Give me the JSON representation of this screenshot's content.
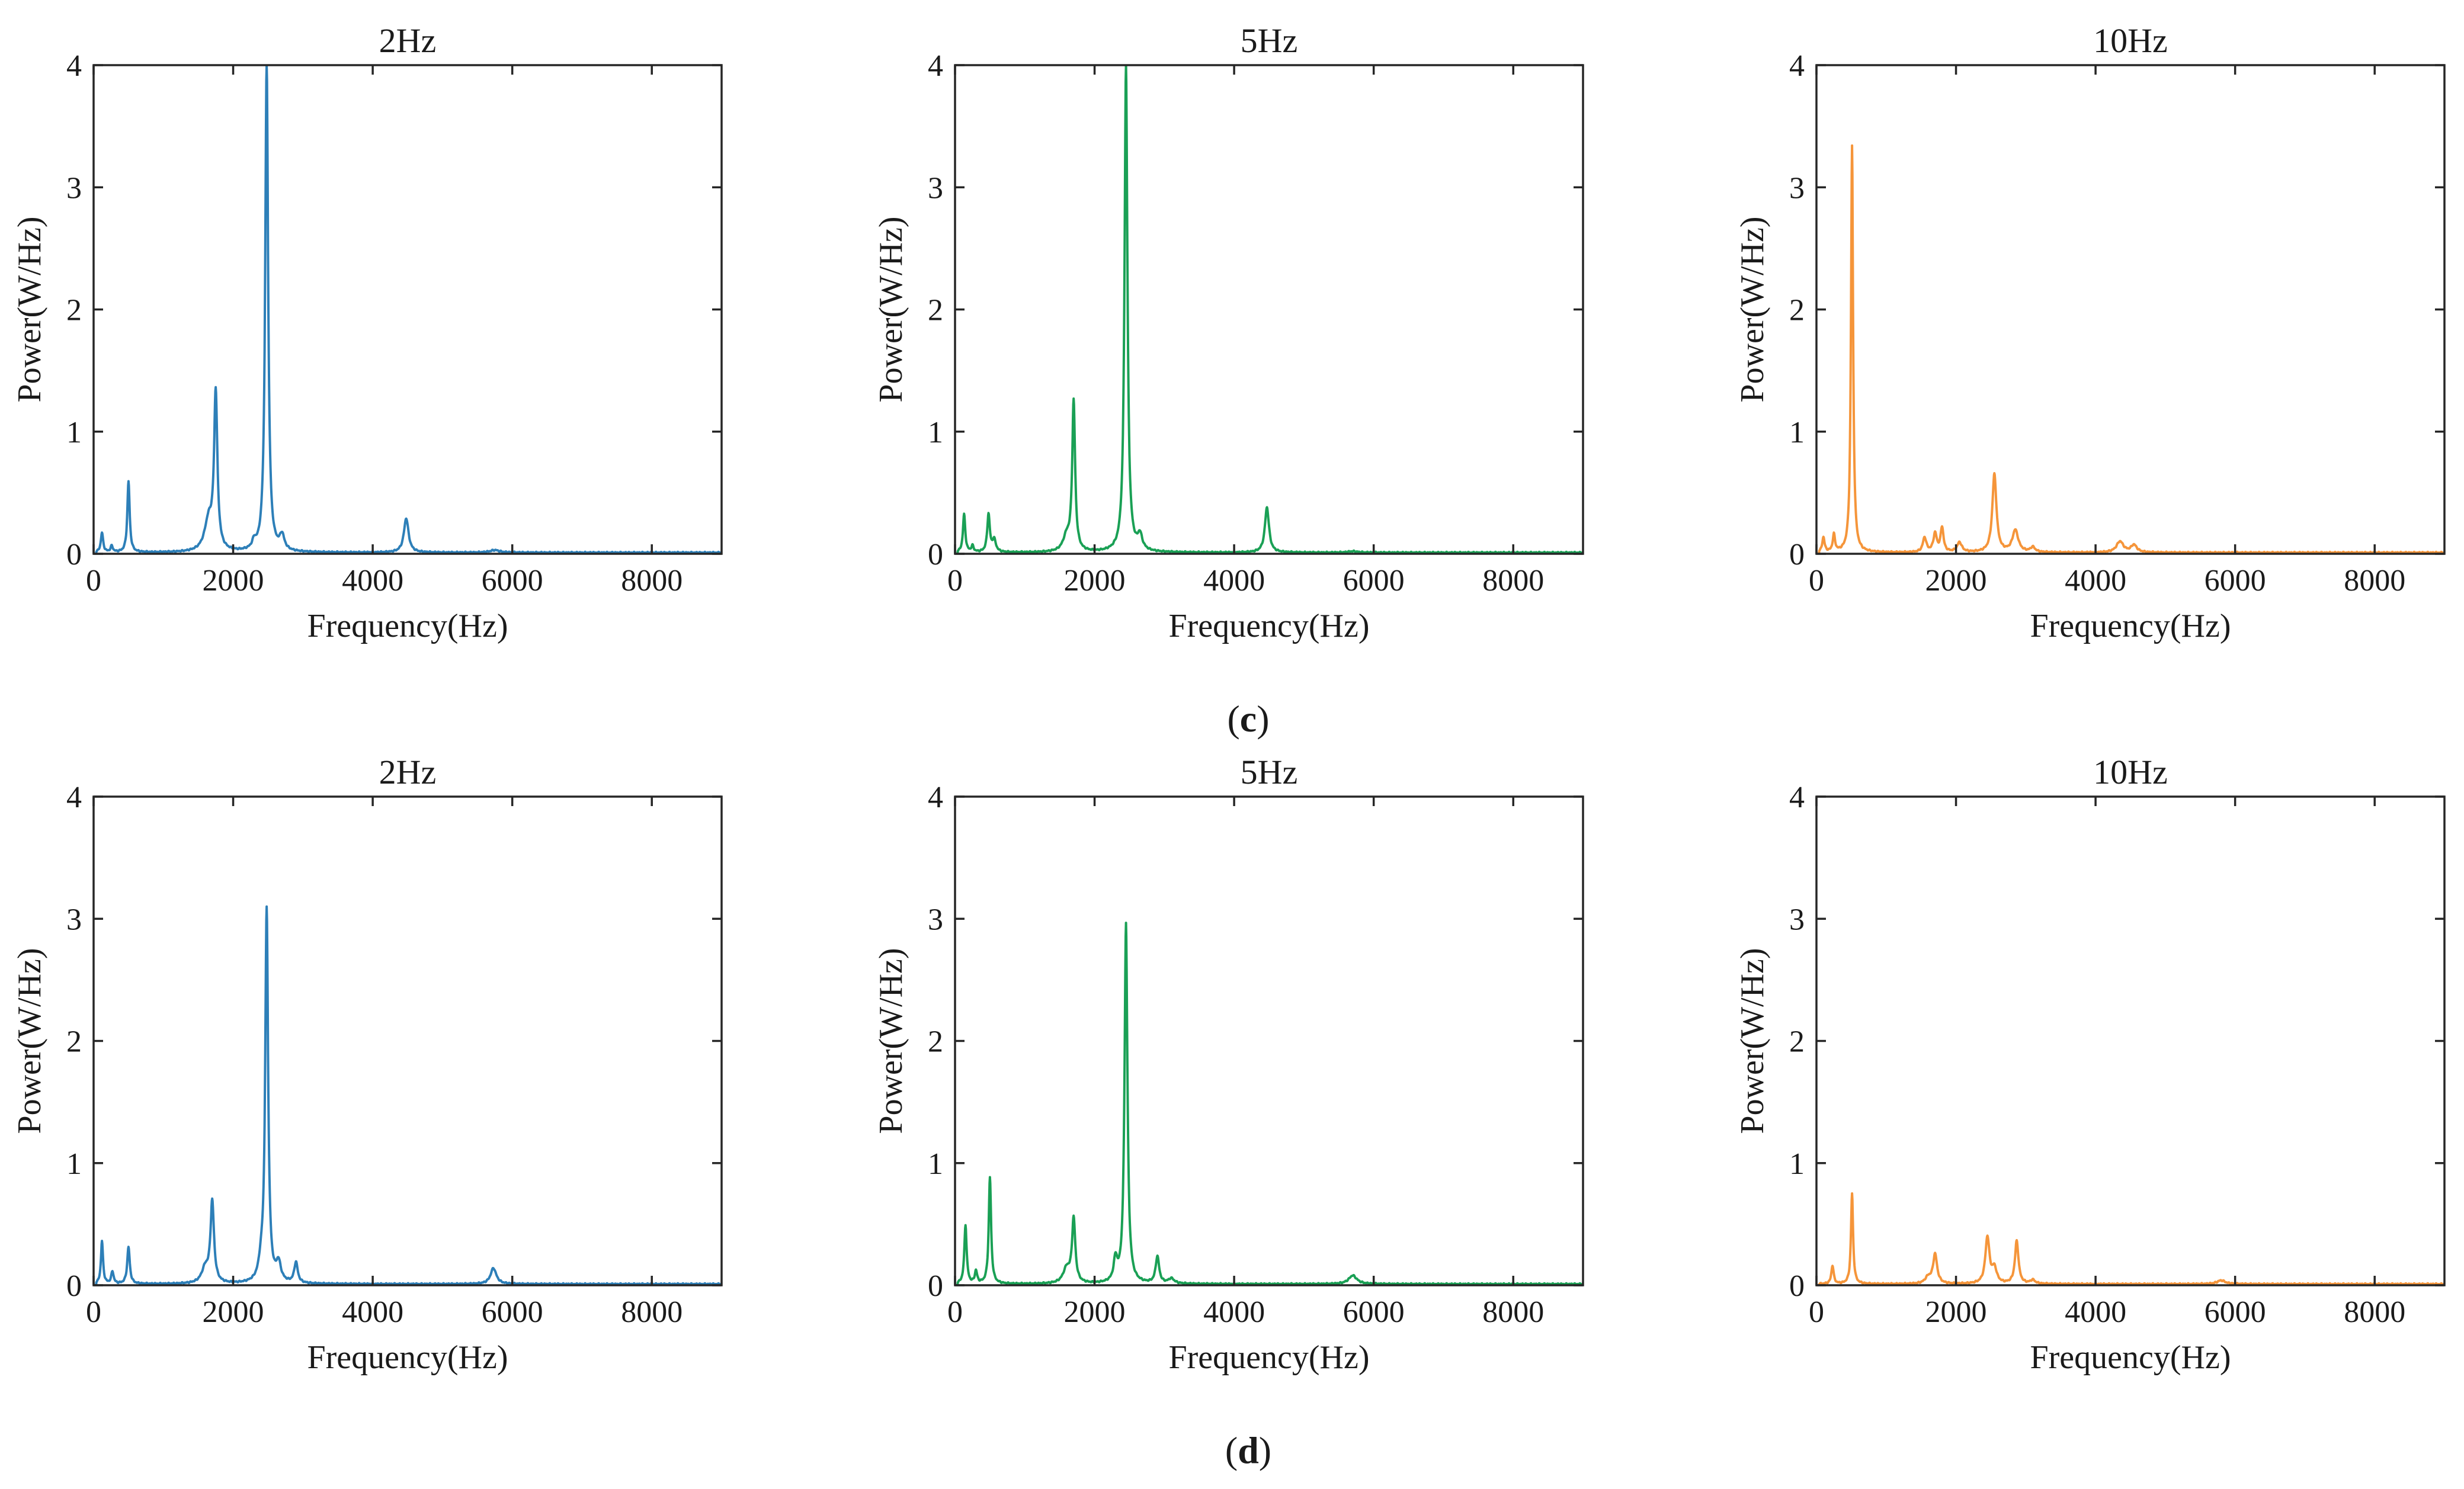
{
  "figure": {
    "panel_labels": [
      {
        "open": "(",
        "letter": "c",
        "close": ")"
      },
      {
        "open": "(",
        "letter": "d",
        "close": ")"
      }
    ]
  },
  "chart_data": [
    {
      "type": "line",
      "title": "2Hz",
      "xlabel": "Frequency(Hz)",
      "ylabel": "Power(W/Hz)",
      "xlim": [
        0,
        9000
      ],
      "ylim": [
        0,
        4
      ],
      "xticks": [
        0,
        2000,
        4000,
        6000,
        8000
      ],
      "yticks": [
        0,
        1,
        2,
        3,
        4
      ],
      "color": "#2d7fb8",
      "series": [
        {
          "name": "2Hz",
          "baseline": 0.01,
          "peaks": [
            {
              "f": 120,
              "p": 0.16,
              "w": 20
            },
            {
              "f": 260,
              "p": 0.05,
              "w": 20
            },
            {
              "f": 500,
              "p": 0.58,
              "w": 20
            },
            {
              "f": 1750,
              "p": 1.27,
              "w": 28
            },
            {
              "f": 1650,
              "p": 0.25,
              "w": 70
            },
            {
              "f": 2300,
              "p": 0.06,
              "w": 30
            },
            {
              "f": 2480,
              "p": 4.0,
              "w": 25
            },
            {
              "f": 2700,
              "p": 0.12,
              "w": 40
            },
            {
              "f": 4480,
              "p": 0.28,
              "w": 40
            },
            {
              "f": 5750,
              "p": 0.02,
              "w": 80
            }
          ]
        }
      ]
    },
    {
      "type": "line",
      "title": "5Hz",
      "xlabel": "Frequency(Hz)",
      "ylabel": "Power(W/Hz)",
      "xlim": [
        0,
        9000
      ],
      "ylim": [
        0,
        4
      ],
      "xticks": [
        0,
        2000,
        4000,
        6000,
        8000
      ],
      "yticks": [
        0,
        1,
        2,
        3,
        4
      ],
      "color": "#1aa055",
      "series": [
        {
          "name": "5Hz",
          "baseline": 0.01,
          "peaks": [
            {
              "f": 130,
              "p": 0.31,
              "w": 20
            },
            {
              "f": 250,
              "p": 0.05,
              "w": 20
            },
            {
              "f": 480,
              "p": 0.31,
              "w": 22
            },
            {
              "f": 560,
              "p": 0.1,
              "w": 30
            },
            {
              "f": 1700,
              "p": 1.22,
              "w": 25
            },
            {
              "f": 1600,
              "p": 0.12,
              "w": 60
            },
            {
              "f": 2450,
              "p": 4.0,
              "w": 25
            },
            {
              "f": 2650,
              "p": 0.12,
              "w": 40
            },
            {
              "f": 4470,
              "p": 0.37,
              "w": 35
            },
            {
              "f": 5700,
              "p": 0.01,
              "w": 80
            }
          ]
        }
      ]
    },
    {
      "type": "line",
      "title": "10Hz",
      "xlabel": "Frequency(Hz)",
      "ylabel": "Power(W/Hz)",
      "xlim": [
        0,
        9000
      ],
      "ylim": [
        0,
        4
      ],
      "xticks": [
        0,
        2000,
        4000,
        6000,
        8000
      ],
      "yticks": [
        0,
        1,
        2,
        3,
        4
      ],
      "color": "#f5953a",
      "series": [
        {
          "name": "10Hz",
          "baseline": 0.01,
          "peaks": [
            {
              "f": 100,
              "p": 0.12,
              "w": 20
            },
            {
              "f": 250,
              "p": 0.14,
              "w": 20
            },
            {
              "f": 510,
              "p": 3.33,
              "w": 18
            },
            {
              "f": 1550,
              "p": 0.12,
              "w": 30
            },
            {
              "f": 1700,
              "p": 0.15,
              "w": 30
            },
            {
              "f": 1800,
              "p": 0.2,
              "w": 25
            },
            {
              "f": 2050,
              "p": 0.08,
              "w": 40
            },
            {
              "f": 2550,
              "p": 0.64,
              "w": 35
            },
            {
              "f": 2850,
              "p": 0.18,
              "w": 50
            },
            {
              "f": 3100,
              "p": 0.04,
              "w": 40
            },
            {
              "f": 4350,
              "p": 0.09,
              "w": 60
            },
            {
              "f": 4550,
              "p": 0.06,
              "w": 50
            }
          ]
        }
      ]
    },
    {
      "type": "line",
      "title": "2Hz",
      "xlabel": "Frequency(Hz)",
      "ylabel": "Power(W/Hz)",
      "xlim": [
        0,
        9000
      ],
      "ylim": [
        0,
        4
      ],
      "xticks": [
        0,
        2000,
        4000,
        6000,
        8000
      ],
      "yticks": [
        0,
        1,
        2,
        3,
        4
      ],
      "color": "#2d7fb8",
      "series": [
        {
          "name": "2Hz",
          "baseline": 0.01,
          "peaks": [
            {
              "f": 120,
              "p": 0.35,
              "w": 18
            },
            {
              "f": 270,
              "p": 0.1,
              "w": 20
            },
            {
              "f": 500,
              "p": 0.3,
              "w": 22
            },
            {
              "f": 1700,
              "p": 0.66,
              "w": 30
            },
            {
              "f": 1600,
              "p": 0.12,
              "w": 60
            },
            {
              "f": 2400,
              "p": 0.12,
              "w": 40
            },
            {
              "f": 2480,
              "p": 3.05,
              "w": 25
            },
            {
              "f": 2650,
              "p": 0.15,
              "w": 40
            },
            {
              "f": 2900,
              "p": 0.17,
              "w": 30
            },
            {
              "f": 5730,
              "p": 0.13,
              "w": 50
            }
          ]
        }
      ]
    },
    {
      "type": "line",
      "title": "5Hz",
      "xlabel": "Frequency(Hz)",
      "ylabel": "Power(W/Hz)",
      "xlim": [
        0,
        9000
      ],
      "ylim": [
        0,
        4
      ],
      "xticks": [
        0,
        2000,
        4000,
        6000,
        8000
      ],
      "yticks": [
        0,
        1,
        2,
        3,
        4
      ],
      "color": "#1aa055",
      "series": [
        {
          "name": "5Hz",
          "baseline": 0.01,
          "peaks": [
            {
              "f": 150,
              "p": 0.48,
              "w": 20
            },
            {
              "f": 300,
              "p": 0.1,
              "w": 20
            },
            {
              "f": 500,
              "p": 0.87,
              "w": 20
            },
            {
              "f": 1700,
              "p": 0.52,
              "w": 28
            },
            {
              "f": 1600,
              "p": 0.12,
              "w": 60
            },
            {
              "f": 2300,
              "p": 0.18,
              "w": 30
            },
            {
              "f": 2450,
              "p": 2.95,
              "w": 25
            },
            {
              "f": 2900,
              "p": 0.22,
              "w": 30
            },
            {
              "f": 3100,
              "p": 0.04,
              "w": 50
            },
            {
              "f": 5700,
              "p": 0.07,
              "w": 70
            }
          ]
        }
      ]
    },
    {
      "type": "line",
      "title": "10Hz",
      "xlabel": "Frequency(Hz)",
      "ylabel": "Power(W/Hz)",
      "xlim": [
        0,
        9000
      ],
      "ylim": [
        0,
        4
      ],
      "xticks": [
        0,
        2000,
        4000,
        6000,
        8000
      ],
      "yticks": [
        0,
        1,
        2,
        3,
        4
      ],
      "color": "#f5953a",
      "series": [
        {
          "name": "10Hz",
          "baseline": 0.01,
          "peaks": [
            {
              "f": 230,
              "p": 0.15,
              "w": 20
            },
            {
              "f": 510,
              "p": 0.74,
              "w": 18
            },
            {
              "f": 1700,
              "p": 0.24,
              "w": 35
            },
            {
              "f": 1600,
              "p": 0.05,
              "w": 50
            },
            {
              "f": 2450,
              "p": 0.38,
              "w": 35
            },
            {
              "f": 2550,
              "p": 0.12,
              "w": 40
            },
            {
              "f": 2870,
              "p": 0.35,
              "w": 30
            },
            {
              "f": 3100,
              "p": 0.03,
              "w": 40
            },
            {
              "f": 5800,
              "p": 0.03,
              "w": 70
            }
          ]
        }
      ]
    }
  ]
}
